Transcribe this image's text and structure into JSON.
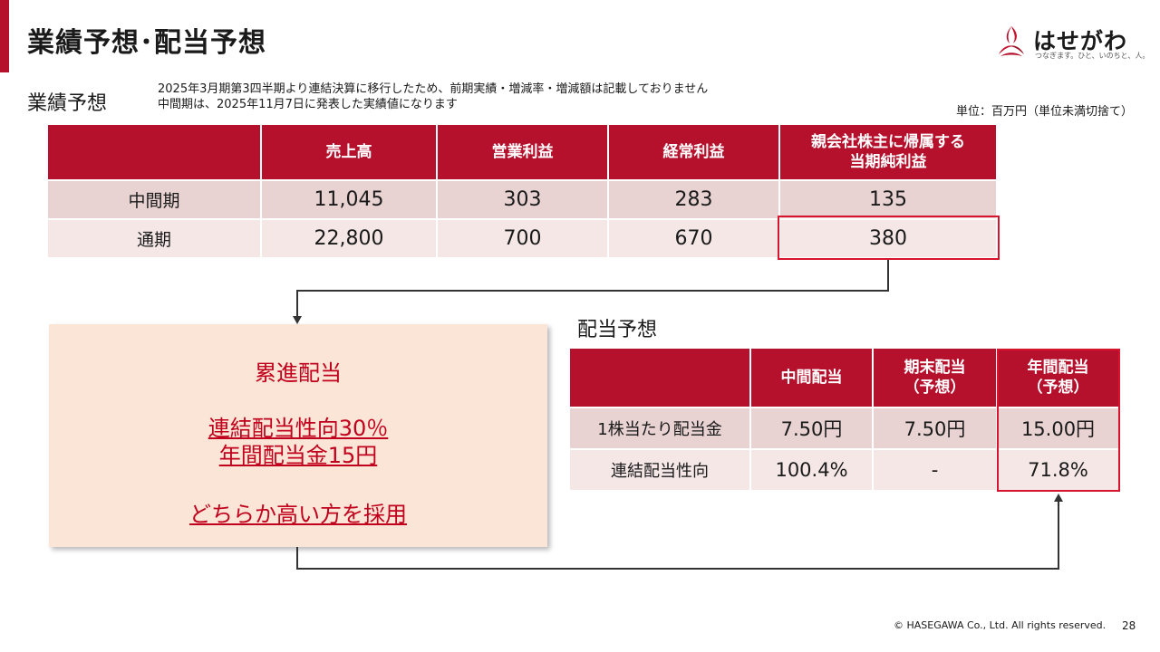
{
  "header": {
    "title": "業績予想･配当予想",
    "accent_color": "#b5102c"
  },
  "logo": {
    "name": "はせがわ",
    "tagline": "つなぎます。ひと、いのちと、人。",
    "mark_icon": "hasegawa-flame-logo"
  },
  "forecast": {
    "section_title": "業績予想",
    "notes": [
      "2025年3月期第3四半期より連結決算に移行したため、前期実績・増減率・増減額は記載しておりません",
      "中間期は、2025年11月7日に発表した実績値になります"
    ],
    "unit": "単位：百万円（単位未満切捨て）",
    "table": {
      "headers": [
        "",
        "売上高",
        "営業利益",
        "経常利益",
        "親会社株主に帰属する",
        "当期純利益"
      ],
      "rows": [
        {
          "label": "中間期",
          "values": [
            "11,045",
            "303",
            "283",
            "135"
          ]
        },
        {
          "label": "通期",
          "values": [
            "22,800",
            "700",
            "670",
            "380"
          ]
        }
      ]
    }
  },
  "policy": {
    "title": "累進配当",
    "line1": "連結配当性向30％",
    "line2": "年間配当金15円",
    "line3": "どちらか高い方を採用"
  },
  "dividend": {
    "section_title": "配当予想",
    "table": {
      "headers": [
        {
          "l1": "",
          "l2": ""
        },
        {
          "l1": "中間配当",
          "l2": ""
        },
        {
          "l1": "期末配当",
          "l2": "（予想）"
        },
        {
          "l1": "年間配当",
          "l2": "（予想）"
        }
      ],
      "rows": [
        {
          "label": "1株当たり配当金",
          "values": [
            "7.50円",
            "7.50円",
            "15.00円"
          ]
        },
        {
          "label": "連結配当性向",
          "values": [
            "100.4%",
            "-",
            "71.8%"
          ]
        }
      ]
    }
  },
  "footer": {
    "copyright": "© HASEGAWA Co., Ltd. All rights reserved.",
    "page": "28"
  }
}
